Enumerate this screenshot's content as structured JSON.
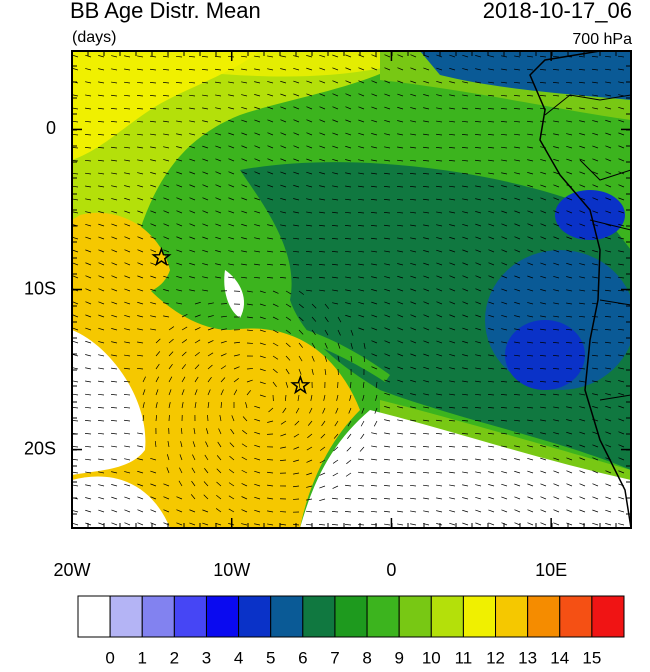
{
  "title": "BB Age Distr. Mean",
  "units": "(days)",
  "time": "2018-10-17_06",
  "level": "700 hPa",
  "lonlim": [
    -20,
    15
  ],
  "latlim": [
    -24.9,
    4.9
  ],
  "lon_ticks": [
    {
      "value": -20,
      "label": "20W"
    },
    {
      "value": -10,
      "label": "10W"
    },
    0,
    {
      "value": 10,
      "label": "10E"
    }
  ],
  "lat_ticks": [
    0,
    {
      "value": -10,
      "label": "10S"
    },
    {
      "value": -20,
      "label": "20S"
    }
  ],
  "markers": [
    {
      "lon": -14.4,
      "lat": -8
    },
    {
      "lon": -5.7,
      "lat": -16
    }
  ],
  "colorbar": {
    "levels": [
      0,
      1,
      2,
      3,
      4,
      5,
      6,
      7,
      8,
      9,
      10,
      11,
      12,
      13,
      14,
      15
    ],
    "colors": [
      "#ffffff",
      "#b4b4f5",
      "#8282f0",
      "#4646f5",
      "#0a0af0",
      "#0a32c8",
      "#0a5a96",
      "#107840",
      "#1e9a1e",
      "#3cb41e",
      "#78c814",
      "#b4e00a",
      "#f0f000",
      "#f5c800",
      "#f58c00",
      "#f55014",
      "#f01414"
    ]
  }
}
